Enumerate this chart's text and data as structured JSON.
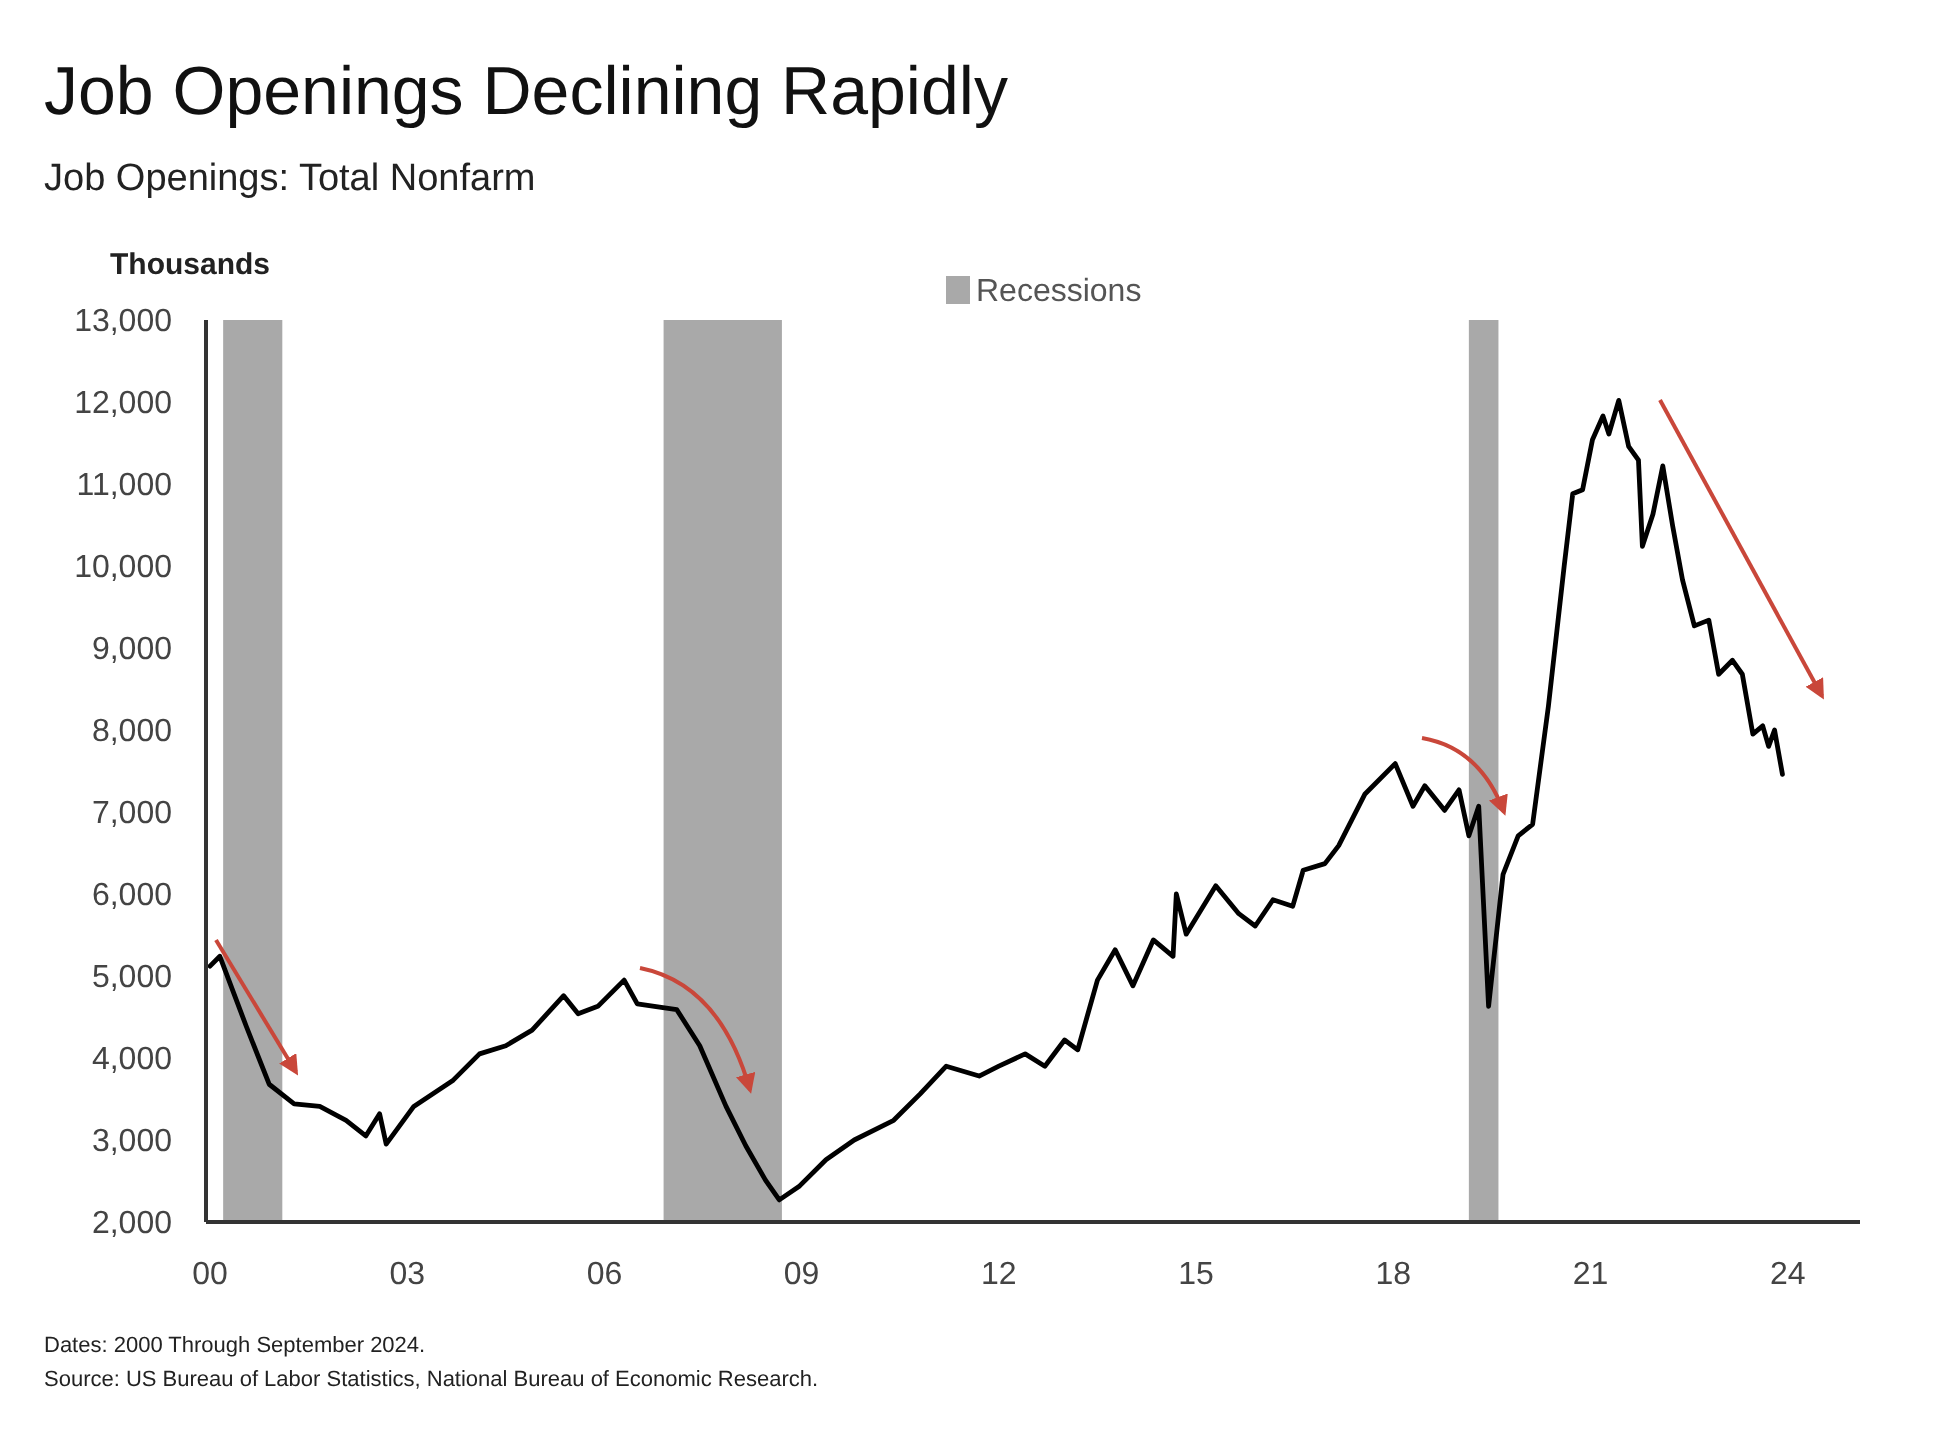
{
  "chart_data": {
    "type": "line",
    "title": "Job Openings Declining Rapidly",
    "subtitle": "Job Openings: Total Nonfarm",
    "ylabel": "Thousands",
    "annotations": [
      "Dates: 2000 Through September 2024.",
      "Source: US Bureau of Labor Statistics, National Bureau of Economic Research."
    ],
    "xlim": [
      2000,
      2025.1
    ],
    "ylim": [
      2000,
      13000
    ],
    "xticks": [
      {
        "value": 2000,
        "label": "00"
      },
      {
        "value": 2003,
        "label": "03"
      },
      {
        "value": 2006,
        "label": "06"
      },
      {
        "value": 2009,
        "label": "09"
      },
      {
        "value": 2012,
        "label": "12"
      },
      {
        "value": 2015,
        "label": "15"
      },
      {
        "value": 2018,
        "label": "18"
      },
      {
        "value": 2021,
        "label": "21"
      },
      {
        "value": 2024,
        "label": "24"
      }
    ],
    "yticks": [
      {
        "value": 2000,
        "label": "2,000"
      },
      {
        "value": 3000,
        "label": "3,000"
      },
      {
        "value": 4000,
        "label": "4,000"
      },
      {
        "value": 5000,
        "label": "5,000"
      },
      {
        "value": 6000,
        "label": "6,000"
      },
      {
        "value": 7000,
        "label": "7,000"
      },
      {
        "value": 8000,
        "label": "8,000"
      },
      {
        "value": 9000,
        "label": "9,000"
      },
      {
        "value": 10000,
        "label": "10,000"
      },
      {
        "value": 11000,
        "label": "11,000"
      },
      {
        "value": 12000,
        "label": "12,000"
      },
      {
        "value": 13000,
        "label": "13,000"
      }
    ],
    "bands": [
      {
        "axis": "x",
        "from": 2000.2,
        "to": 2001.1,
        "label": "Recessions",
        "color": "#a9a9a9"
      },
      {
        "axis": "x",
        "from": 2006.9,
        "to": 2008.7,
        "color": "#a9a9a9"
      },
      {
        "axis": "x",
        "from": 2019.15,
        "to": 2019.6,
        "color": "#a9a9a9"
      }
    ],
    "legend": "top",
    "grid": false,
    "series": [
      {
        "color": "#000000",
        "x": [
          2000.0,
          2000.15,
          2000.55,
          2000.9,
          2001.28,
          2001.67,
          2002.07,
          2002.37,
          2002.58,
          2002.68,
          2003.1,
          2003.7,
          2004.1,
          2004.5,
          2004.9,
          2005.38,
          2005.6,
          2005.9,
          2006.3,
          2006.5,
          2007.1,
          2007.45,
          2007.85,
          2008.15,
          2008.45,
          2008.66,
          2008.97,
          2009.37,
          2009.8,
          2010.4,
          2010.8,
          2011.2,
          2011.7,
          2012.0,
          2012.4,
          2012.7,
          2013.0,
          2013.2,
          2013.5,
          2013.77,
          2014.04,
          2014.35,
          2014.65,
          2014.7,
          2014.85,
          2015.3,
          2015.65,
          2015.9,
          2016.17,
          2016.47,
          2016.63,
          2016.96,
          2017.17,
          2017.57,
          2018.03,
          2018.3,
          2018.48,
          2018.78,
          2019.0,
          2019.15,
          2019.3,
          2019.45,
          2019.67,
          2019.9,
          2020.12,
          2020.36,
          2020.6,
          2020.73,
          2020.88,
          2021.03,
          2021.19,
          2021.28,
          2021.43,
          2021.58,
          2021.73,
          2021.79,
          2021.95,
          2022.1,
          2022.25,
          2022.4,
          2022.58,
          2022.8,
          2022.95,
          2023.16,
          2023.31,
          2023.47,
          2023.62,
          2023.71,
          2023.8,
          2023.92
        ],
        "values": [
          5120,
          5240,
          4390,
          3680,
          3440,
          3410,
          3240,
          3050,
          3320,
          2950,
          3410,
          3730,
          4050,
          4150,
          4340,
          4760,
          4540,
          4630,
          4950,
          4660,
          4590,
          4150,
          3410,
          2930,
          2510,
          2270,
          2440,
          2760,
          3000,
          3240,
          3560,
          3900,
          3780,
          3900,
          4050,
          3900,
          4220,
          4100,
          4950,
          5320,
          4880,
          5440,
          5240,
          6000,
          5510,
          6100,
          5760,
          5610,
          5930,
          5850,
          6290,
          6370,
          6590,
          7220,
          7590,
          7070,
          7320,
          7020,
          7270,
          6710,
          7070,
          4630,
          6240,
          6710,
          6850,
          8290,
          10000,
          10880,
          10930,
          11540,
          11830,
          11610,
          12020,
          11460,
          11290,
          10240,
          10630,
          11220,
          10490,
          9830,
          9270,
          9340,
          8680,
          8850,
          8680,
          7950,
          8050,
          7800,
          8000,
          7460
        ]
      }
    ]
  }
}
